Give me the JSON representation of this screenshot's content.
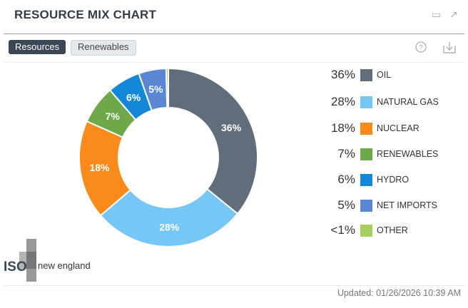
{
  "header": {
    "title": "RESOURCE MIX CHART"
  },
  "tabs": [
    {
      "label": "Resources",
      "active": true
    },
    {
      "label": "Renewables",
      "active": false
    }
  ],
  "logo": {
    "text_iso": "ISO",
    "text_ne": "new england"
  },
  "footer": {
    "updated": "Updated: 01/26/2026 10:39 AM"
  },
  "chart_data": {
    "type": "pie",
    "subtype": "donut",
    "title": "RESOURCE MIX CHART",
    "legend_placement": "right",
    "categories": [
      "OIL",
      "NATURAL GAS",
      "NUCLEAR",
      "RENEWABLES",
      "HYDRO",
      "NET IMPORTS",
      "OTHER"
    ],
    "values": [
      36,
      28,
      18,
      7,
      6,
      5,
      0.4
    ],
    "labels": [
      "36%",
      "28%",
      "18%",
      "7%",
      "6%",
      "5%",
      "<1%"
    ],
    "colors": [
      "#5f6e7a",
      "#76c6f6",
      "#fb8a1c",
      "#6fa84a",
      "#1388d8",
      "#5b86d3",
      "#a5cf5f"
    ]
  }
}
